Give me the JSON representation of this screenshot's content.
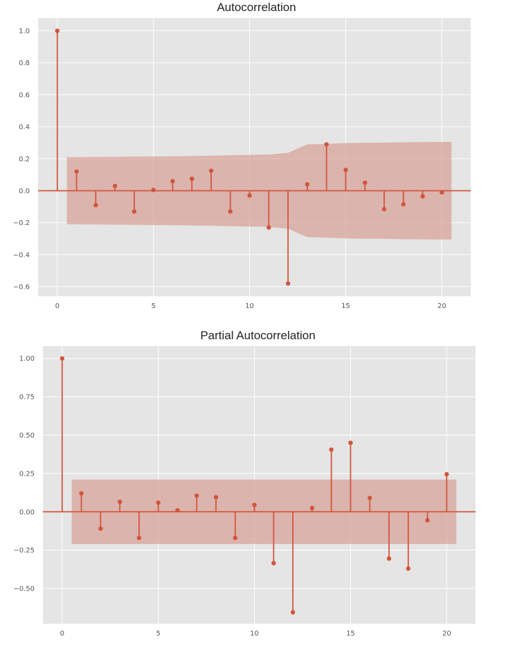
{
  "chart_data": [
    {
      "type": "stem",
      "title": "Autocorrelation",
      "x": [
        0,
        1,
        2,
        3,
        4,
        5,
        6,
        7,
        8,
        9,
        10,
        11,
        12,
        13,
        14,
        15,
        16,
        17,
        18,
        19,
        20
      ],
      "values": [
        1.0,
        0.12,
        -0.09,
        0.03,
        -0.13,
        0.005,
        0.06,
        0.075,
        0.125,
        -0.13,
        -0.03,
        -0.23,
        -0.58,
        0.04,
        0.29,
        0.13,
        0.05,
        -0.115,
        -0.085,
        -0.035,
        -0.01
      ],
      "confidence_band": {
        "x": [
          0.5,
          1,
          2,
          3,
          4,
          5,
          6,
          7,
          8,
          9,
          10,
          11,
          12,
          13,
          14,
          15,
          16,
          17,
          18,
          19,
          20,
          20.5
        ],
        "upper": [
          0.21,
          0.21,
          0.211,
          0.212,
          0.213,
          0.214,
          0.215,
          0.217,
          0.219,
          0.222,
          0.224,
          0.226,
          0.237,
          0.29,
          0.293,
          0.298,
          0.3,
          0.301,
          0.303,
          0.304,
          0.305,
          0.305
        ],
        "lower": [
          -0.21,
          -0.21,
          -0.211,
          -0.212,
          -0.213,
          -0.214,
          -0.215,
          -0.217,
          -0.219,
          -0.222,
          -0.224,
          -0.226,
          -0.237,
          -0.29,
          -0.293,
          -0.298,
          -0.3,
          -0.301,
          -0.303,
          -0.304,
          -0.305,
          -0.305
        ]
      },
      "xlim": [
        -1,
        21.5
      ],
      "ylim": [
        -0.66,
        1.08
      ],
      "xticks": [
        0,
        5,
        10,
        15,
        20
      ],
      "yticks": [
        1.0,
        0.8,
        0.6,
        0.4,
        0.2,
        0.0,
        -0.2,
        -0.4,
        -0.6
      ],
      "ytick_labels": [
        "1.0",
        "0.8",
        "0.6",
        "0.4",
        "0.2",
        "0.0",
        "−0.2",
        "−0.4",
        "−0.6"
      ],
      "grid": true,
      "style": "ggplot",
      "color": "#d2553c",
      "band_color": "#d59a8f"
    },
    {
      "type": "stem",
      "title": "Partial Autocorrelation",
      "x": [
        0,
        1,
        2,
        3,
        4,
        5,
        6,
        7,
        8,
        9,
        10,
        11,
        12,
        13,
        14,
        15,
        16,
        17,
        18,
        19,
        20
      ],
      "values": [
        1.0,
        0.12,
        -0.11,
        0.065,
        -0.17,
        0.06,
        0.01,
        0.105,
        0.095,
        -0.17,
        0.045,
        -0.335,
        -0.655,
        0.025,
        0.405,
        0.45,
        0.09,
        -0.305,
        -0.37,
        -0.055,
        0.245
      ],
      "confidence_band": {
        "x": [
          0.5,
          20.5
        ],
        "upper": 0.21,
        "lower": -0.21
      },
      "xlim": [
        -1,
        21.5
      ],
      "ylim": [
        -0.73,
        1.08
      ],
      "xticks": [
        0,
        5,
        10,
        15,
        20
      ],
      "yticks": [
        1.0,
        0.75,
        0.5,
        0.25,
        0.0,
        -0.25,
        -0.5
      ],
      "ytick_labels": [
        "1.00",
        "0.75",
        "0.50",
        "0.25",
        "0.00",
        "−0.25",
        "−0.50"
      ],
      "grid": true,
      "style": "ggplot",
      "color": "#d2553c",
      "band_color": "#d59a8f"
    }
  ]
}
